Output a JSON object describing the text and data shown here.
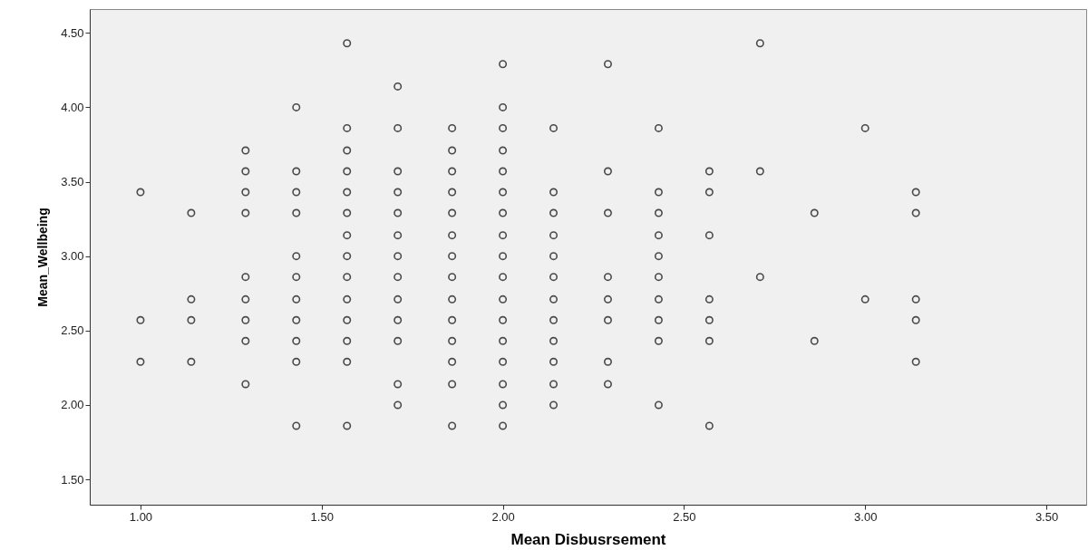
{
  "chart_data": {
    "type": "scatter",
    "xlabel": "Mean  Disbusrsement",
    "ylabel": "Mean_Wellbeing",
    "marker": "circle",
    "grid": false,
    "xlim": [
      0.86,
      3.61
    ],
    "ylim": [
      1.33,
      4.66
    ],
    "xticks": [
      {
        "value": 1.0,
        "label": "1.00"
      },
      {
        "value": 1.5,
        "label": "1.50"
      },
      {
        "value": 2.0,
        "label": "2.00"
      },
      {
        "value": 2.5,
        "label": "2.50"
      },
      {
        "value": 3.0,
        "label": "3.00"
      },
      {
        "value": 3.5,
        "label": "3.50"
      }
    ],
    "yticks": [
      {
        "value": 1.5,
        "label": "1.50"
      },
      {
        "value": 2.0,
        "label": "2.00"
      },
      {
        "value": 2.5,
        "label": "2.50"
      },
      {
        "value": 3.0,
        "label": "3.00"
      },
      {
        "value": 3.5,
        "label": "3.50"
      },
      {
        "value": 4.0,
        "label": "4.00"
      },
      {
        "value": 4.5,
        "label": "4.50"
      }
    ],
    "series": [
      {
        "color": "#4a4a4a",
        "x": [
          1.0,
          1.0,
          1.0,
          1.14,
          1.14,
          1.14,
          1.14,
          1.29,
          1.29,
          1.29,
          1.29,
          1.29,
          1.29,
          1.29,
          1.29,
          1.29,
          1.43,
          1.43,
          1.43,
          1.43,
          1.43,
          1.43,
          1.43,
          1.43,
          1.43,
          1.43,
          1.43,
          1.57,
          1.57,
          1.57,
          1.57,
          1.57,
          1.57,
          1.57,
          1.57,
          1.57,
          1.57,
          1.57,
          1.57,
          1.57,
          1.57,
          1.71,
          1.71,
          1.71,
          1.71,
          1.71,
          1.71,
          1.71,
          1.71,
          1.71,
          1.71,
          1.71,
          1.71,
          1.71,
          1.86,
          1.86,
          1.86,
          1.86,
          1.86,
          1.86,
          1.86,
          1.86,
          1.86,
          1.86,
          1.86,
          1.86,
          1.86,
          1.86,
          2.0,
          2.0,
          2.0,
          2.0,
          2.0,
          2.0,
          2.0,
          2.0,
          2.0,
          2.0,
          2.0,
          2.0,
          2.0,
          2.0,
          2.0,
          2.0,
          2.0,
          2.14,
          2.14,
          2.14,
          2.14,
          2.14,
          2.14,
          2.14,
          2.14,
          2.14,
          2.14,
          2.14,
          2.14,
          2.29,
          2.29,
          2.29,
          2.29,
          2.29,
          2.29,
          2.29,
          2.29,
          2.43,
          2.43,
          2.43,
          2.43,
          2.43,
          2.43,
          2.43,
          2.43,
          2.43,
          2.43,
          2.57,
          2.57,
          2.57,
          2.57,
          2.57,
          2.57,
          2.57,
          2.71,
          2.71,
          2.71,
          2.86,
          2.86,
          3.0,
          3.0,
          3.14,
          3.14,
          3.14,
          3.14,
          3.14
        ],
        "values": [
          3.43,
          2.57,
          2.29,
          3.29,
          2.71,
          2.57,
          2.29,
          3.71,
          3.57,
          3.43,
          3.29,
          2.86,
          2.71,
          2.57,
          2.43,
          2.14,
          4.0,
          3.57,
          3.43,
          3.29,
          3.0,
          2.86,
          2.71,
          2.57,
          2.43,
          2.29,
          1.86,
          4.43,
          3.86,
          3.71,
          3.57,
          3.43,
          3.29,
          3.14,
          3.0,
          2.86,
          2.71,
          2.57,
          2.43,
          2.29,
          1.86,
          4.14,
          3.86,
          3.57,
          3.43,
          3.29,
          3.14,
          3.0,
          2.86,
          2.71,
          2.57,
          2.43,
          2.14,
          2.0,
          3.86,
          3.71,
          3.57,
          3.43,
          3.29,
          3.14,
          3.0,
          2.86,
          2.71,
          2.57,
          2.43,
          2.29,
          2.14,
          1.86,
          4.29,
          4.0,
          3.86,
          3.71,
          3.57,
          3.43,
          3.29,
          3.14,
          3.0,
          2.86,
          2.71,
          2.57,
          2.43,
          2.29,
          2.14,
          2.0,
          1.86,
          3.86,
          3.43,
          3.29,
          3.14,
          3.0,
          2.86,
          2.71,
          2.57,
          2.43,
          2.29,
          2.14,
          2.0,
          4.29,
          3.57,
          3.29,
          2.86,
          2.71,
          2.57,
          2.29,
          2.14,
          3.86,
          3.43,
          3.29,
          3.14,
          3.0,
          2.86,
          2.71,
          2.57,
          2.43,
          2.0,
          3.57,
          3.43,
          3.14,
          2.71,
          2.57,
          2.43,
          1.86,
          4.43,
          3.57,
          2.86,
          3.29,
          2.43,
          3.86,
          2.71,
          3.43,
          3.29,
          2.71,
          2.57,
          2.29
        ]
      }
    ]
  }
}
